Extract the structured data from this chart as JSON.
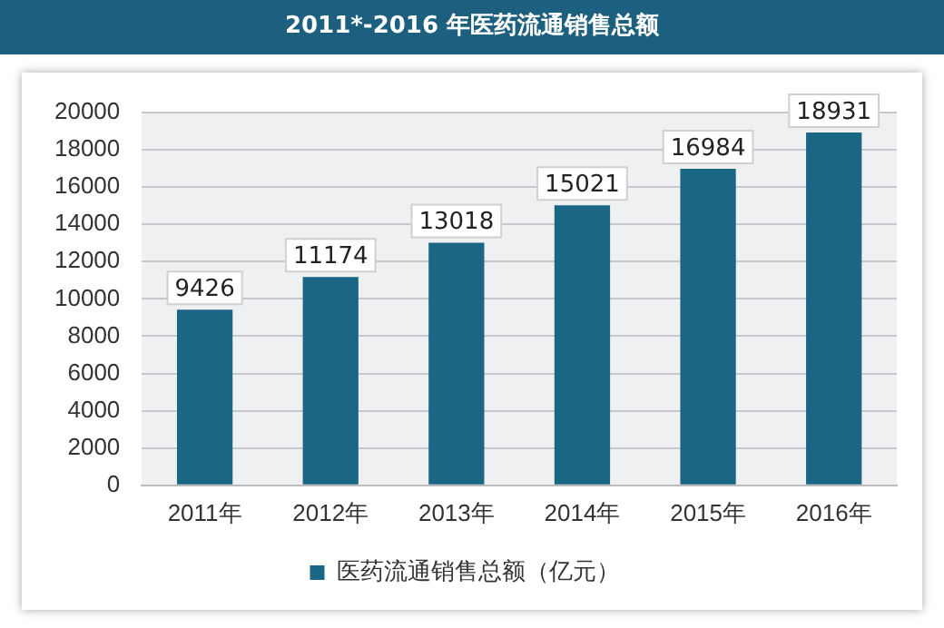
{
  "chart_data": {
    "type": "bar",
    "title": "2011*-2016 年医药流通销售总额",
    "categories": [
      "2011年",
      "2012年",
      "2013年",
      "2014年",
      "2015年",
      "2016年"
    ],
    "series": [
      {
        "name": "医药流通销售总额（亿元）",
        "color": "#1b6585",
        "values": [
          9426,
          11174,
          13018,
          15021,
          16984,
          18931
        ]
      }
    ],
    "ylim": [
      0,
      20000
    ],
    "yticks": [
      0,
      2000,
      4000,
      6000,
      8000,
      10000,
      12000,
      14000,
      16000,
      18000,
      20000
    ],
    "grid": "y",
    "legend": "bottom",
    "data_labels": true
  }
}
